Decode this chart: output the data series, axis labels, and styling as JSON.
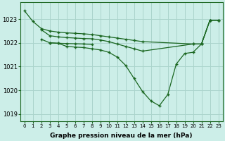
{
  "title": "Graphe pression niveau de la mer (hPa)",
  "bg_color": "#cceee8",
  "grid_color": "#aad4cc",
  "line_color": "#1a6620",
  "marker": "+",
  "xlim": [
    -0.5,
    23.5
  ],
  "ylim": [
    1018.7,
    1023.7
  ],
  "yticks": [
    1019,
    1020,
    1021,
    1022,
    1023
  ],
  "xticks": [
    0,
    1,
    2,
    3,
    4,
    5,
    6,
    7,
    8,
    9,
    10,
    11,
    12,
    13,
    14,
    15,
    16,
    17,
    18,
    19,
    20,
    21,
    22,
    23
  ],
  "lines": [
    {
      "x": [
        0,
        1,
        2,
        3,
        4,
        5,
        6,
        7,
        8,
        9,
        10,
        11,
        12,
        13,
        14,
        20,
        21,
        22,
        23
      ],
      "y": [
        1023.35,
        1022.9,
        1022.6,
        1022.5,
        1022.45,
        1022.42,
        1022.4,
        1022.38,
        1022.35,
        1022.3,
        1022.25,
        1022.2,
        1022.15,
        1022.1,
        1022.05,
        1021.95,
        1021.95,
        1022.95,
        1022.95
      ]
    },
    {
      "x": [
        2,
        3,
        4,
        5,
        6,
        7,
        8,
        9,
        10,
        11,
        12,
        13,
        14,
        20,
        21,
        22,
        23
      ],
      "y": [
        1022.55,
        1022.3,
        1022.25,
        1022.22,
        1022.2,
        1022.18,
        1022.17,
        1022.12,
        1022.05,
        1021.95,
        1021.85,
        1021.75,
        1021.65,
        1021.95,
        1021.95,
        1022.95,
        1022.95
      ]
    },
    {
      "x": [
        2,
        3,
        4,
        5,
        6,
        7,
        8
      ],
      "y": [
        1022.15,
        1022.0,
        1021.98,
        1021.97,
        1021.96,
        1021.95,
        1021.93
      ]
    },
    {
      "x": [
        3,
        4,
        5,
        6,
        7,
        8,
        9,
        10,
        11,
        12,
        13,
        14,
        15,
        16,
        17,
        18,
        19,
        20,
        21,
        22,
        23
      ],
      "y": [
        1022.0,
        1021.98,
        1021.85,
        1021.82,
        1021.8,
        1021.75,
        1021.7,
        1021.6,
        1021.4,
        1021.05,
        1020.5,
        1019.95,
        1019.55,
        1019.35,
        1019.82,
        1021.1,
        1021.55,
        1021.6,
        1021.95,
        1022.95,
        1022.95
      ]
    }
  ]
}
